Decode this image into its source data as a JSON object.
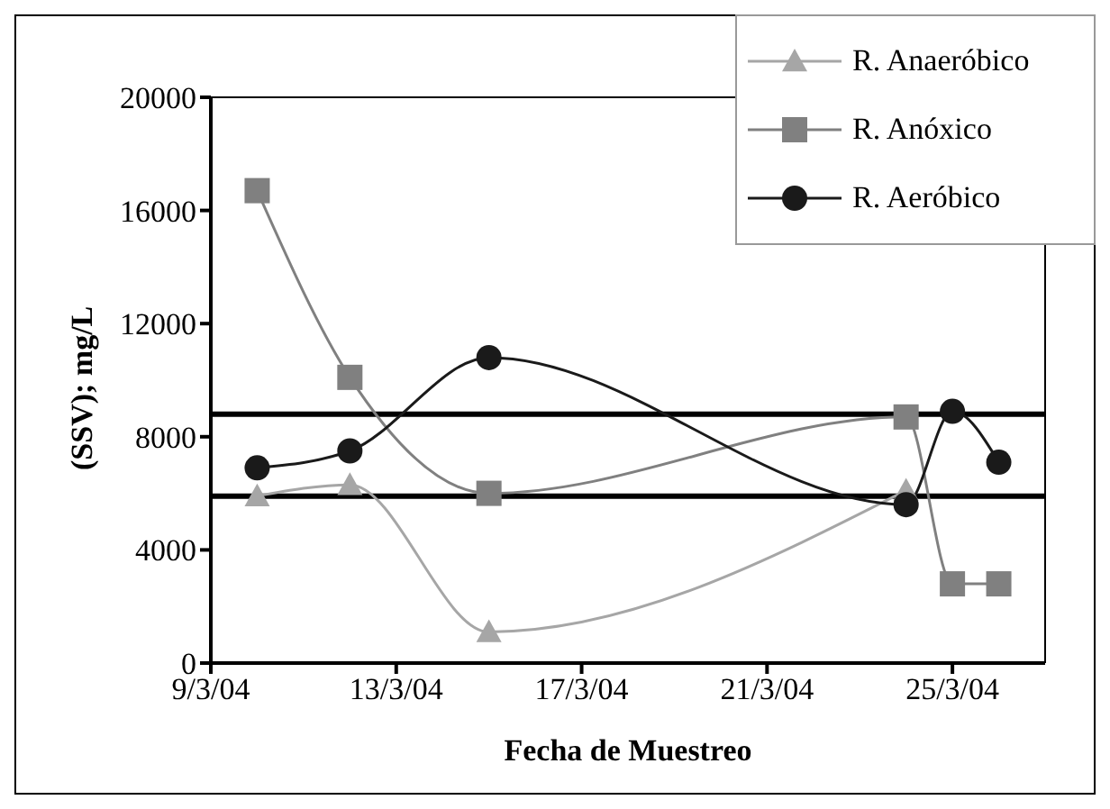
{
  "chart_data": {
    "type": "line",
    "xlabel": "Fecha de Muestreo",
    "ylabel": "(SSV); mg/L",
    "x": [
      "--03-10",
      "--03-12",
      "--03-15",
      "--03-24",
      "--03-25",
      "--03-26"
    ],
    "series": [
      {
        "name": "R. Anaeróbico",
        "color": "#a6a6a6",
        "marker": "triangle",
        "values": [
          5900,
          6300,
          1100,
          6100,
          null,
          null
        ]
      },
      {
        "name": "R. Anóxico",
        "color": "#808080",
        "marker": "square",
        "values": [
          16700,
          10100,
          6000,
          8700,
          2800,
          2800
        ]
      },
      {
        "name": "R. Aeróbico",
        "color": "#1a1a1a",
        "marker": "circle",
        "values": [
          6900,
          7500,
          10800,
          5600,
          8900,
          7100
        ]
      }
    ],
    "ref_lines": [
      {
        "axis": "y",
        "value": 8800,
        "color": "#000000"
      },
      {
        "axis": "y",
        "value": 5900,
        "color": "#000000"
      }
    ],
    "xlim": [
      "--03-09",
      "--03-27"
    ],
    "xticks": [
      {
        "value": "--03-09",
        "label": "9/3/04"
      },
      {
        "value": "--03-13",
        "label": "13/3/04"
      },
      {
        "value": "--03-17",
        "label": "17/3/04"
      },
      {
        "value": "--03-21",
        "label": "21/3/04"
      },
      {
        "value": "--03-25",
        "label": "25/3/04"
      }
    ],
    "ylim": [
      0,
      20000
    ],
    "yticks": [
      0,
      4000,
      8000,
      12000,
      16000,
      20000
    ],
    "grid": false,
    "legend": "top right",
    "line_style": "solid"
  }
}
